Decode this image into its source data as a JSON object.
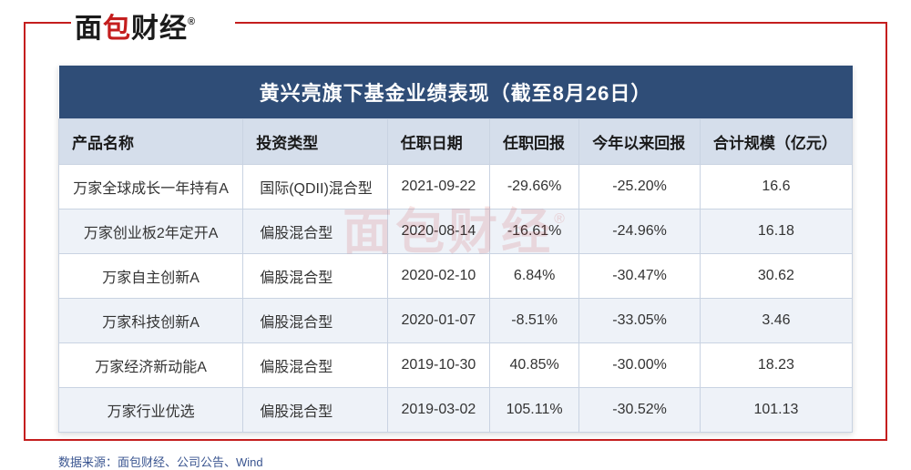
{
  "logo": {
    "part1": "面",
    "part2": "包",
    "part3": "财经",
    "trademark": "®"
  },
  "watermark": {
    "text": "面包财经",
    "trademark": "®"
  },
  "table": {
    "title": "黄兴亮旗下基金业绩表现（截至8月26日）",
    "title_bg": "#2f4d77",
    "title_color": "#ffffff",
    "header_bg": "#d5deeb",
    "row_alt_bg": "#eef2f8",
    "border_color": "#c9d3e2",
    "columns": [
      "产品名称",
      "投资类型",
      "任职日期",
      "任职回报",
      "今年以来回报",
      "合计规模（亿元）"
    ],
    "rows": [
      [
        "万家全球成长一年持有A",
        "国际(QDII)混合型",
        "2021-09-22",
        "-29.66%",
        "-25.20%",
        "16.6"
      ],
      [
        "万家创业板2年定开A",
        "偏股混合型",
        "2020-08-14",
        "-16.61%",
        "-24.96%",
        "16.18"
      ],
      [
        "万家自主创新A",
        "偏股混合型",
        "2020-02-10",
        "6.84%",
        "-30.47%",
        "30.62"
      ],
      [
        "万家科技创新A",
        "偏股混合型",
        "2020-01-07",
        "-8.51%",
        "-33.05%",
        "3.46"
      ],
      [
        "万家经济新动能A",
        "偏股混合型",
        "2019-10-30",
        "40.85%",
        "-30.00%",
        "18.23"
      ],
      [
        "万家行业优选",
        "偏股混合型",
        "2019-03-02",
        "105.11%",
        "-30.52%",
        "101.13"
      ]
    ]
  },
  "source": "数据来源：面包财经、公司公告、Wind",
  "frame_color": "#c41e1e"
}
